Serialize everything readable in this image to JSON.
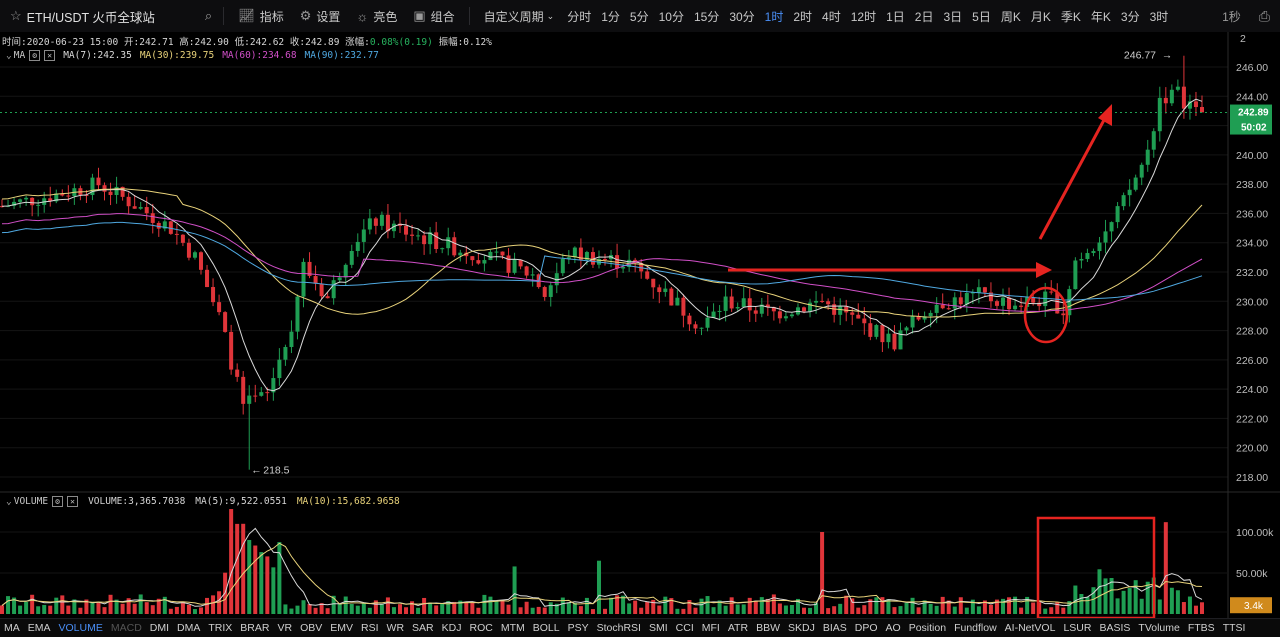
{
  "toolbar": {
    "symbol": "ETH/USDT 火币全球站",
    "indicators_label": "指标",
    "settings_label": "设置",
    "theme_label": "亮色",
    "combo_label": "组合",
    "custom_period_label": "自定义周期",
    "periods": [
      "分时",
      "1分",
      "5分",
      "10分",
      "15分",
      "30分",
      "1时",
      "2时",
      "4时",
      "12时",
      "1日",
      "2日",
      "3日",
      "5日",
      "周K",
      "月K",
      "季K",
      "年K",
      "3分",
      "3时"
    ],
    "active_period": "1时",
    "right_label": "1秒"
  },
  "ohlc": {
    "time_label": "时间:",
    "time": "2020-06-23 15:00",
    "open_label": "开:",
    "open": "242.71",
    "high_label": "高:",
    "high": "242.90",
    "low_label": "低:",
    "low": "242.62",
    "close_label": "收:",
    "close": "242.89",
    "change_label": "涨幅:",
    "change": "0.08%(0.19)",
    "amp_label": "振幅:",
    "amp": "0.12%"
  },
  "ma_legend": {
    "name": "MA",
    "items": [
      {
        "label": "MA(7):242.35",
        "color": "#d9d9d9"
      },
      {
        "label": "MA(30):239.75",
        "color": "#e8d27a"
      },
      {
        "label": "MA(60):234.68",
        "color": "#d04fc7"
      },
      {
        "label": "MA(90):232.77",
        "color": "#4fa8e0"
      }
    ]
  },
  "vol_legend": {
    "name": "VOLUME",
    "volume": "VOLUME:3,365.7038",
    "ma5": "MA(5):9,522.0551",
    "ma10": "MA(10):15,682.9658",
    "ma10_color": "#e8d27a"
  },
  "price_axis": {
    "ticks": [
      "246.00",
      "244.00",
      "242.00",
      "240.00",
      "238.00",
      "236.00",
      "234.00",
      "232.00",
      "230.00",
      "228.00",
      "226.00",
      "224.00",
      "222.00",
      "220.00",
      "218.00"
    ],
    "current_price": "242.89",
    "countdown": "50:02",
    "top_label": "2"
  },
  "volume_axis": {
    "ticks": [
      "100.00k",
      "50.00k"
    ],
    "current": "3.4k"
  },
  "annotations": {
    "high_marker": "246.77",
    "low_marker": "218.5"
  },
  "colors": {
    "up": "#1f9e53",
    "down": "#e0353a",
    "price_tag": "#1f9e53",
    "vol_tag": "#d08a1c",
    "arrow": "#e52420"
  },
  "indicator_tabs": [
    "MA",
    "EMA",
    "VOLUME",
    "MACD",
    "DMI",
    "DMA",
    "TRIX",
    "BRAR",
    "VR",
    "OBV",
    "EMV",
    "RSI",
    "WR",
    "SAR",
    "KDJ",
    "ROC",
    "MTM",
    "BOLL",
    "PSY",
    "StochRSI",
    "SMI",
    "CCI",
    "MFI",
    "ATR",
    "BBW",
    "SKDJ",
    "BIAS",
    "DPO",
    "AO",
    "Position",
    "Fundflow",
    "AI-NetVOL",
    "LSUR",
    "BASIS",
    "TVolume",
    "FTBS",
    "TTSI"
  ],
  "active_tab": "VOLUME",
  "disabled_tab": "MACD"
}
